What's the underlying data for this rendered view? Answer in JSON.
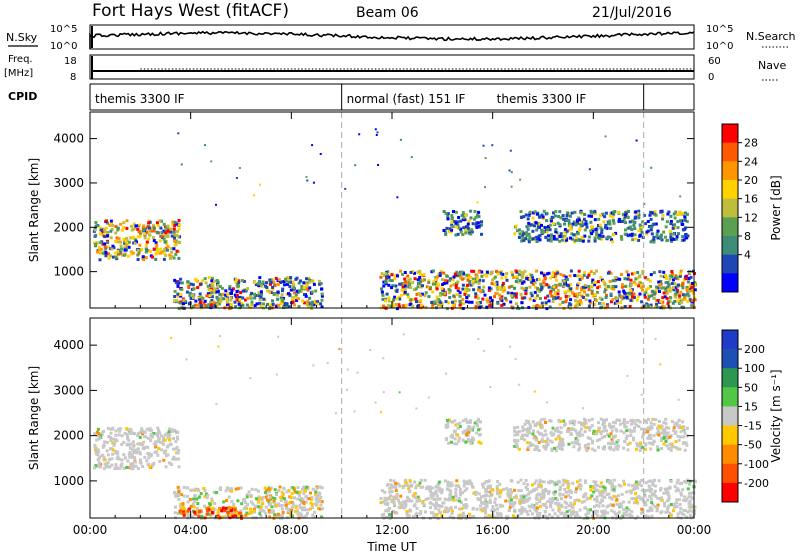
{
  "header": {
    "radar": "Fort Hays West (fitACF)",
    "beam": "Beam 06",
    "date": "21/Jul/2016"
  },
  "strip": {
    "nsky_label": "N.Sky",
    "nsky_ticks": [
      "10^5",
      "10^0"
    ],
    "nsearch_label": "N.Search",
    "nsearch_ticks": [
      "10^5",
      "10^0"
    ],
    "freq_label": "Freq.",
    "freq_unit": "[MHz]",
    "freq_ticks": [
      "18",
      "8"
    ],
    "nave_label": "Nave",
    "nave_ticks": [
      "60",
      "0"
    ],
    "cpid_label": "CPID"
  },
  "cpid": {
    "segments": [
      {
        "start_hour": 0,
        "end_hour": 10,
        "label": "themis 3300 IF"
      },
      {
        "start_hour": 10,
        "end_hour": 22,
        "label": "normal (fast) 151 IF"
      },
      {
        "start_hour": 22,
        "end_hour": 24,
        "label": "themis 3300 IF"
      }
    ],
    "right_label_hour": 16
  },
  "chart_data": [
    {
      "type": "heatmap",
      "quantity": "power",
      "ylabel": "Slant Range [km]",
      "xlabel": "Time UT",
      "xlim": [
        0,
        24
      ],
      "ylim": [
        180,
        4600
      ],
      "yticks": [
        1000,
        2000,
        3000,
        4000
      ],
      "xticks": [
        0,
        4,
        8,
        12,
        16,
        20,
        24
      ],
      "xticklabels": [
        "00:00",
        "04:00",
        "08:00",
        "12:00",
        "16:00",
        "20:00",
        "00:00"
      ],
      "colorbar_label": "Power [dB]",
      "colorbar_ticks": [
        "28",
        "24",
        "20",
        "16",
        "12",
        "8",
        "4"
      ],
      "colorbar_colors": [
        "#ff0000",
        "#ff5a00",
        "#ff9600",
        "#ffd200",
        "#bebe3c",
        "#5aa050",
        "#3c8c78",
        "#1e46b4",
        "#0000ff"
      ],
      "regions": [
        {
          "t0": 0.1,
          "t1": 3.5,
          "r0": 1300,
          "r1": 2200,
          "intensity": "high"
        },
        {
          "t0": 3.3,
          "t1": 9.2,
          "r0": 200,
          "r1": 900,
          "intensity": "medium"
        },
        {
          "t0": 3.5,
          "t1": 6.0,
          "r0": 200,
          "r1": 450,
          "intensity": "high"
        },
        {
          "t0": 11.5,
          "t1": 24.0,
          "r0": 200,
          "r1": 1050,
          "intensity": "high"
        },
        {
          "t0": 14.0,
          "t1": 15.5,
          "r0": 1850,
          "r1": 2400,
          "intensity": "low"
        },
        {
          "t0": 16.8,
          "t1": 23.7,
          "r0": 1700,
          "r1": 2400,
          "intensity": "low"
        }
      ]
    },
    {
      "type": "heatmap",
      "quantity": "velocity",
      "ylabel": "Slant Range [km]",
      "xlabel": "Time UT",
      "xlim": [
        0,
        24
      ],
      "ylim": [
        180,
        4600
      ],
      "yticks": [
        1000,
        2000,
        3000,
        4000
      ],
      "xticks": [
        0,
        4,
        8,
        12,
        16,
        20,
        24
      ],
      "xticklabels": [
        "00:00",
        "04:00",
        "08:00",
        "12:00",
        "16:00",
        "20:00",
        "00:00"
      ],
      "colorbar_label": "Velocity [m s⁻¹]",
      "colorbar_ticks": [
        "200",
        "100",
        "50",
        "15",
        "-15",
        "-50",
        "-100",
        "-200"
      ],
      "colorbar_colors": [
        "#1e3cc8",
        "#1e50b4",
        "#2d9650",
        "#50c846",
        "#c8c8c8",
        "#ffc800",
        "#ff8c00",
        "#ff5000",
        "#ff0000"
      ],
      "regions": [
        {
          "t0": 0.1,
          "t1": 3.5,
          "r0": 1300,
          "r1": 2200,
          "intensity": "grey"
        },
        {
          "t0": 3.3,
          "t1": 9.2,
          "r0": 200,
          "r1": 900,
          "intensity": "mixed"
        },
        {
          "t0": 3.5,
          "t1": 6.0,
          "r0": 200,
          "r1": 450,
          "intensity": "negative"
        },
        {
          "t0": 11.5,
          "t1": 24.0,
          "r0": 200,
          "r1": 1050,
          "intensity": "grey"
        },
        {
          "t0": 14.0,
          "t1": 15.5,
          "r0": 1850,
          "r1": 2400,
          "intensity": "grey"
        },
        {
          "t0": 16.8,
          "t1": 23.7,
          "r0": 1700,
          "r1": 2400,
          "intensity": "grey"
        }
      ]
    }
  ]
}
